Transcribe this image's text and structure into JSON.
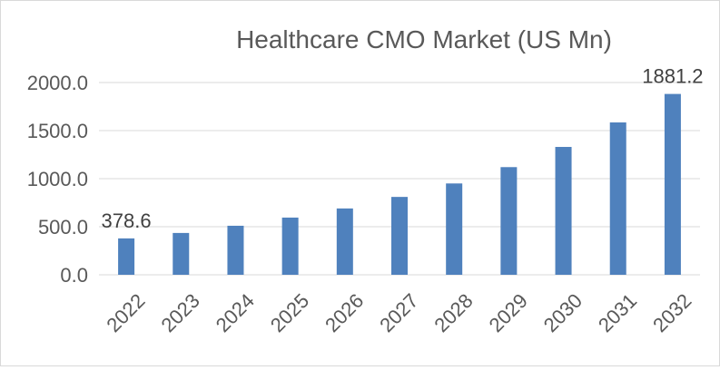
{
  "chart_data": {
    "type": "bar",
    "title": "Healthcare CMO Market (US Mn)",
    "xlabel": "",
    "ylabel": "",
    "categories": [
      "2022",
      "2023",
      "2024",
      "2025",
      "2026",
      "2027",
      "2028",
      "2029",
      "2030",
      "2031",
      "2032"
    ],
    "series": [
      {
        "values": [
          378.6,
          435,
          510,
          595,
          690,
          810,
          950,
          1120,
          1330,
          1585,
          1881.2
        ],
        "color": "#4F81BD"
      }
    ],
    "ylim": [
      0,
      2000
    ],
    "yticks": [
      "0.0",
      "500.0",
      "1000.0",
      "1500.0",
      "2000.0"
    ],
    "data_labels": [
      {
        "category": "2022",
        "text": "378.6"
      },
      {
        "category": "2032",
        "text": "1881.2"
      }
    ],
    "grid": true,
    "legend": "none"
  }
}
